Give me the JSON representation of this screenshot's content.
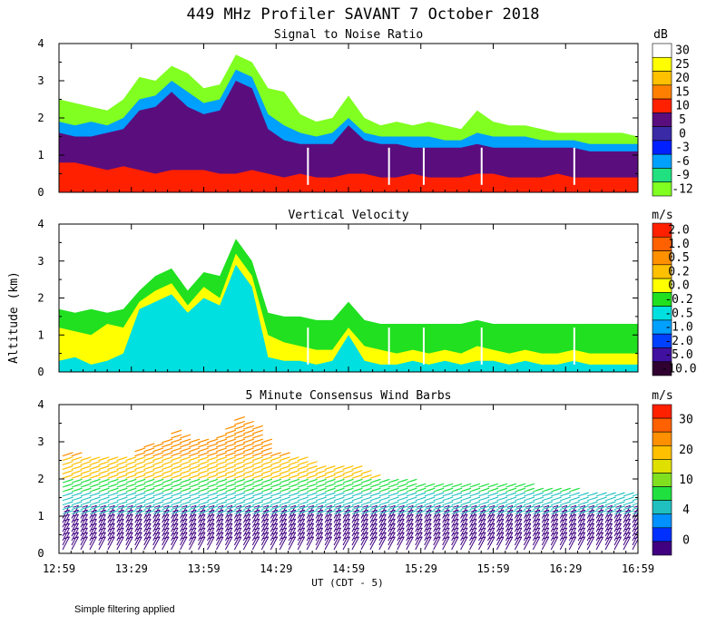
{
  "title": "449 MHz Profiler SAVANT  7 October 2018",
  "ylabel": "Altitude (km)",
  "xlabel": "UT  (CDT - 5)",
  "footnote": "Simple filtering applied",
  "time_ticks": [
    "12:59",
    "13:29",
    "13:59",
    "14:29",
    "14:59",
    "15:29",
    "15:59",
    "16:29",
    "16:59"
  ],
  "chart_data": [
    {
      "type": "heatmap",
      "title": "Signal to Noise Ratio",
      "units": "dB",
      "x_range": [
        "12:59",
        "16:59"
      ],
      "ylim": [
        0,
        4
      ],
      "yticks": [
        "0",
        "1",
        "2",
        "3",
        "4"
      ],
      "colorbar": {
        "labels": [
          "30",
          "25",
          "20",
          "15",
          "10",
          "5",
          "0",
          "-3",
          "-6",
          "-9",
          "-12"
        ],
        "colors": [
          "#ffffff",
          "#ffff00",
          "#ffc000",
          "#ff8000",
          "#ff2000",
          "#5a0e7e",
          "#3a2aa6",
          "#0020ff",
          "#00a0ff",
          "#20e080",
          "#80ff20"
        ]
      },
      "layers": [
        {
          "value": "-12",
          "color": "#80ff20",
          "top_km": [
            2.5,
            2.4,
            2.3,
            2.2,
            2.5,
            3.1,
            3.0,
            3.4,
            3.2,
            2.8,
            2.9,
            3.7,
            3.5,
            2.8,
            2.7,
            2.1,
            1.9,
            2.0,
            2.6,
            2.0,
            1.8,
            1.9,
            1.8,
            1.9,
            1.8,
            1.7,
            2.2,
            1.9,
            1.8,
            1.8,
            1.7,
            1.6,
            1.6,
            1.6,
            1.6,
            1.6,
            1.5
          ]
        },
        {
          "value": "-6",
          "color": "#00a0ff",
          "top_km": [
            1.9,
            1.8,
            1.9,
            1.8,
            2.0,
            2.5,
            2.6,
            3.0,
            2.7,
            2.4,
            2.5,
            3.3,
            3.1,
            2.1,
            1.8,
            1.6,
            1.5,
            1.6,
            2.0,
            1.6,
            1.5,
            1.5,
            1.5,
            1.5,
            1.4,
            1.4,
            1.6,
            1.5,
            1.5,
            1.5,
            1.4,
            1.4,
            1.4,
            1.3,
            1.3,
            1.3,
            1.3
          ]
        },
        {
          "value": "5",
          "color": "#5a0e7e",
          "top_km": [
            1.6,
            1.5,
            1.5,
            1.6,
            1.7,
            2.2,
            2.3,
            2.7,
            2.3,
            2.1,
            2.2,
            3.0,
            2.8,
            1.7,
            1.4,
            1.3,
            1.3,
            1.3,
            1.8,
            1.4,
            1.3,
            1.3,
            1.2,
            1.2,
            1.2,
            1.2,
            1.3,
            1.2,
            1.2,
            1.2,
            1.2,
            1.2,
            1.2,
            1.1,
            1.1,
            1.1,
            1.1
          ]
        },
        {
          "value": "10",
          "color": "#ff2000",
          "top_km": [
            0.8,
            0.8,
            0.7,
            0.6,
            0.7,
            0.6,
            0.5,
            0.6,
            0.6,
            0.6,
            0.5,
            0.5,
            0.6,
            0.5,
            0.4,
            0.5,
            0.4,
            0.4,
            0.5,
            0.5,
            0.4,
            0.4,
            0.5,
            0.4,
            0.4,
            0.4,
            0.5,
            0.5,
            0.4,
            0.4,
            0.4,
            0.5,
            0.4,
            0.4,
            0.4,
            0.4,
            0.4
          ]
        }
      ]
    },
    {
      "type": "heatmap",
      "title": "Vertical Velocity",
      "units": "m/s",
      "x_range": [
        "12:59",
        "16:59"
      ],
      "ylim": [
        0,
        4
      ],
      "yticks": [
        "0",
        "1",
        "2",
        "3",
        "4"
      ],
      "colorbar": {
        "labels": [
          "2.0",
          "1.0",
          "0.5",
          "0.2",
          "0.0",
          "-0.2",
          "-0.5",
          "-1.0",
          "-2.0",
          "-5.0",
          "-10.0"
        ],
        "colors": [
          "#ff2000",
          "#ff6000",
          "#ff9000",
          "#ffc000",
          "#ffff00",
          "#20e020",
          "#00e0e0",
          "#00a0ff",
          "#0040ff",
          "#4010a0",
          "#300030"
        ]
      },
      "layers": [
        {
          "value": "-0.2",
          "color": "#20e020",
          "top_km": [
            1.7,
            1.6,
            1.7,
            1.6,
            1.7,
            2.2,
            2.6,
            2.8,
            2.2,
            2.7,
            2.6,
            3.6,
            3.0,
            1.6,
            1.5,
            1.5,
            1.4,
            1.4,
            1.9,
            1.4,
            1.3,
            1.3,
            1.3,
            1.3,
            1.3,
            1.3,
            1.4,
            1.3,
            1.3,
            1.3,
            1.3,
            1.3,
            1.3,
            1.3,
            1.3,
            1.3,
            1.3
          ]
        },
        {
          "value": "0.0",
          "color": "#ffff00",
          "top_km": [
            1.2,
            1.1,
            1.0,
            1.3,
            1.2,
            1.9,
            2.2,
            2.4,
            1.8,
            2.3,
            2.0,
            3.2,
            2.6,
            1.0,
            0.8,
            0.7,
            0.6,
            0.6,
            1.2,
            0.7,
            0.6,
            0.5,
            0.6,
            0.5,
            0.6,
            0.5,
            0.7,
            0.6,
            0.5,
            0.6,
            0.5,
            0.5,
            0.6,
            0.5,
            0.5,
            0.5,
            0.5
          ]
        },
        {
          "value": "-0.5",
          "color": "#00e0e0",
          "top_km": [
            0.3,
            0.4,
            0.2,
            0.3,
            0.5,
            1.7,
            1.9,
            2.1,
            1.6,
            2.0,
            1.8,
            2.9,
            2.3,
            0.4,
            0.3,
            0.3,
            0.2,
            0.3,
            1.0,
            0.3,
            0.2,
            0.2,
            0.3,
            0.2,
            0.3,
            0.2,
            0.3,
            0.3,
            0.2,
            0.3,
            0.2,
            0.2,
            0.3,
            0.2,
            0.2,
            0.2,
            0.2
          ]
        }
      ]
    },
    {
      "type": "wind_barbs",
      "title": "5 Minute Consensus Wind Barbs",
      "units": "m/s",
      "x_range": [
        "12:59",
        "16:59"
      ],
      "ylim": [
        0,
        4
      ],
      "yticks": [
        "0",
        "1",
        "2",
        "3",
        "4"
      ],
      "colorbar": {
        "labels": [
          "30",
          "20",
          "10",
          "4",
          "0"
        ],
        "colors": [
          "#ff2000",
          "#ff6000",
          "#ff9000",
          "#ffc000",
          "#e0e000",
          "#80e020",
          "#20e040",
          "#20c0c0",
          "#0090ff",
          "#0030ff",
          "#400080"
        ]
      },
      "speed_by_layer": [
        {
          "range_km": [
            0.0,
            1.0
          ],
          "speed_ms": 2,
          "color": "#400080"
        },
        {
          "range_km": [
            1.0,
            1.6
          ],
          "speed_ms": 7,
          "color": "#20c0c0"
        },
        {
          "range_km": [
            1.6,
            2.0
          ],
          "speed_ms": 10,
          "color": "#20e040"
        },
        {
          "range_km": [
            2.0,
            2.6
          ],
          "speed_ms": 16,
          "color": "#ffc000"
        },
        {
          "range_km": [
            2.6,
            3.8
          ],
          "speed_ms": 18,
          "color": "#ff9000"
        }
      ],
      "top_km": [
        2.7,
        2.6,
        2.5,
        2.6,
        2.6,
        2.9,
        3.0,
        3.3,
        3.1,
        3.0,
        3.2,
        3.7,
        3.4,
        2.7,
        2.6,
        2.5,
        2.3,
        2.3,
        2.3,
        2.2,
        2.0,
        2.0,
        1.9,
        1.9,
        1.9,
        1.8,
        1.9,
        1.8,
        1.8,
        1.8,
        1.7,
        1.7,
        1.7,
        1.6,
        1.6,
        1.6,
        1.6
      ]
    }
  ]
}
